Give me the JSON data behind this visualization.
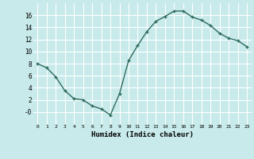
{
  "x": [
    0,
    1,
    2,
    3,
    4,
    5,
    6,
    7,
    8,
    9,
    10,
    11,
    12,
    13,
    14,
    15,
    16,
    17,
    18,
    19,
    20,
    21,
    22,
    23
  ],
  "y": [
    8,
    7.3,
    5.8,
    3.5,
    2.2,
    2.0,
    1.0,
    0.5,
    -0.5,
    3.0,
    8.5,
    11.0,
    13.3,
    15.0,
    15.8,
    16.7,
    16.7,
    15.7,
    15.2,
    14.3,
    13.0,
    12.2,
    11.8,
    10.8
  ],
  "line_color": "#2e6b5e",
  "marker": "+",
  "marker_size": 3,
  "background_color": "#c8eaea",
  "grid_color": "#ffffff",
  "xlabel": "Humidex (Indice chaleur)",
  "ylabel": "",
  "title": "",
  "xlim": [
    -0.5,
    23.5
  ],
  "ylim": [
    -2,
    18
  ],
  "yticks": [
    0,
    2,
    4,
    6,
    8,
    10,
    12,
    14,
    16
  ],
  "ytick_labels": [
    "-0",
    "2",
    "4",
    "6",
    "8",
    "10",
    "12",
    "14",
    "16"
  ],
  "xticks": [
    0,
    1,
    2,
    3,
    4,
    5,
    6,
    7,
    8,
    9,
    10,
    11,
    12,
    13,
    14,
    15,
    16,
    17,
    18,
    19,
    20,
    21,
    22,
    23
  ]
}
